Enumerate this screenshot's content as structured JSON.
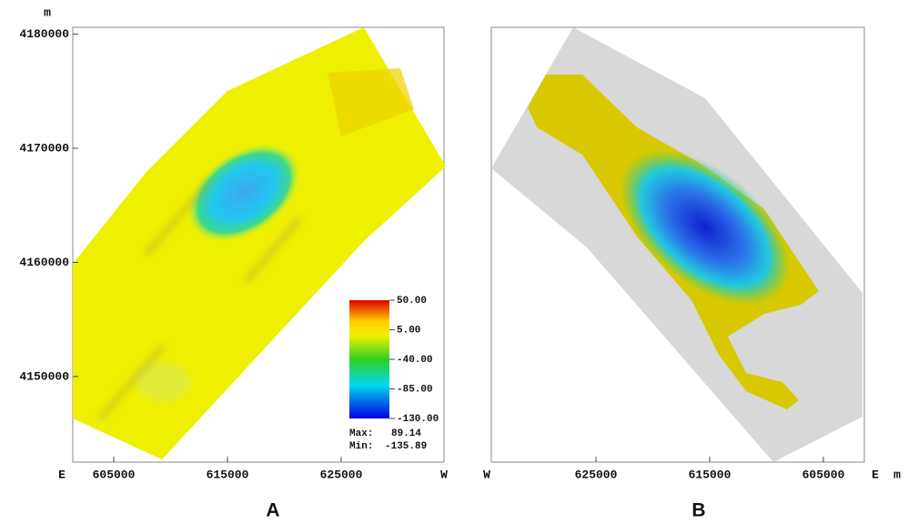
{
  "panels": [
    {
      "label": "A",
      "y_unit": "m",
      "x_left": "E",
      "x_right": "W",
      "xlim": [
        601400,
        634040
      ],
      "xticks": [
        605000,
        615000,
        625000
      ],
      "ylim": [
        4142500,
        4180600
      ],
      "yticks": [
        4150000,
        4160000,
        4170000,
        4180000
      ],
      "colorbar": {
        "lim": [
          -130,
          50
        ],
        "ticks": [
          {
            "value": 50,
            "label": "50.00"
          },
          {
            "value": 5,
            "label": "5.00"
          },
          {
            "value": -40,
            "label": "-40.00"
          },
          {
            "value": -85,
            "label": "-85.00"
          },
          {
            "value": -130,
            "label": "-130.00"
          }
        ],
        "max_label": "Max:",
        "max": 89.14,
        "min_label": "Min:",
        "min": -135.89
      }
    },
    {
      "label": "B",
      "x_left": "W",
      "x_right": "E",
      "x_unit": "m",
      "xlim": [
        634200,
        601400
      ],
      "xticks": [
        625000,
        615000,
        605000
      ]
    }
  ]
}
